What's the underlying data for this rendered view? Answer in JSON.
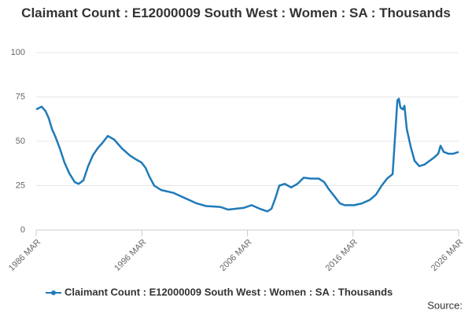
{
  "chart_data": {
    "type": "line",
    "title": "Claimant Count : E12000009 South West : Women : SA : Thousands",
    "source": "Source:",
    "x": [
      1986.17,
      1986.69,
      1987.06,
      1987.36,
      1987.66,
      1987.96,
      1988.41,
      1988.85,
      1989.3,
      1989.82,
      1990.19,
      1990.64,
      1991.09,
      1991.53,
      1991.98,
      1992.43,
      1992.95,
      1993.55,
      1994.29,
      1995.04,
      1995.56,
      1996.15,
      1996.53,
      1996.9,
      1997.35,
      1998.02,
      1999.13,
      2000.25,
      2001.37,
      2002.26,
      2003.6,
      2004.35,
      2005.09,
      2005.84,
      2006.58,
      2007.33,
      2008.07,
      2008.45,
      2008.82,
      2009.19,
      2009.71,
      2010.31,
      2010.9,
      2011.5,
      2012.17,
      2012.92,
      2013.44,
      2013.88,
      2014.41,
      2014.93,
      2015.37,
      2016.27,
      2017.01,
      2017.76,
      2018.35,
      2018.88,
      2019.4,
      2019.92,
      2020.22,
      2020.37,
      2020.51,
      2020.66,
      2020.89,
      2021.04,
      2021.26,
      2021.63,
      2022.0,
      2022.45,
      2022.97,
      2023.42,
      2023.87,
      2024.24,
      2024.46,
      2024.76,
      2025.21,
      2025.66,
      2026.17
    ],
    "series": [
      {
        "name": "Claimant Count : E12000009 South West : Women : SA : Thousands",
        "color": "#1f7ab8",
        "values": [
          68,
          69.5,
          67,
          63,
          57,
          53,
          46,
          38,
          32,
          27,
          26,
          28,
          36,
          42,
          46,
          49,
          53,
          51,
          46,
          42,
          40,
          38,
          35,
          30,
          25,
          22.5,
          21,
          18,
          15,
          13.5,
          13,
          11.5,
          12,
          12.5,
          14,
          12,
          10.5,
          12,
          18,
          25,
          26,
          24,
          26,
          29.5,
          29,
          29,
          27,
          23,
          19,
          15,
          14,
          14,
          15,
          17,
          20,
          25,
          29,
          31.5,
          59,
          73,
          74,
          69,
          68,
          70,
          57,
          47,
          39,
          36,
          37,
          39,
          41,
          43,
          47.5,
          44,
          43,
          43,
          44
        ]
      }
    ],
    "xlim": [
      1986.17,
      2026.17
    ],
    "xticks": [
      {
        "value": 1986.17,
        "label": "1986 MAR"
      },
      {
        "value": 1996.17,
        "label": "1996 MAR"
      },
      {
        "value": 2006.17,
        "label": "2006 MAR"
      },
      {
        "value": 2016.17,
        "label": "2016 MAR"
      },
      {
        "value": 2026.17,
        "label": "2026 MAR"
      }
    ],
    "ylim": [
      0,
      100
    ],
    "yticks": [
      0,
      25,
      50,
      75,
      100
    ],
    "grid": true
  }
}
